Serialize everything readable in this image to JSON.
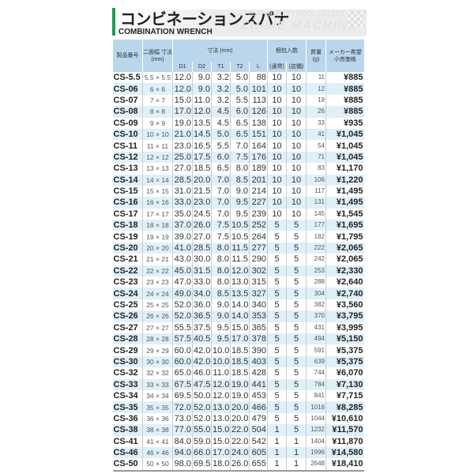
{
  "header": {
    "title": "コンビネーションスパナ",
    "subtitle": "COMBINATION WRENCH",
    "watermark_line1": "HIGH QUALITY TOOL SELECT SHOP",
    "watermark_line2": "EHIME MACHINE"
  },
  "table": {
    "headers": {
      "model": "製品番号",
      "width_across": "二面幅 寸法 (mm)",
      "dimensions": "寸法 (mm)",
      "d1": "D1",
      "d2": "D2",
      "t1": "T1",
      "t2": "T2",
      "l": "L",
      "pack_qty": "梱包入数",
      "pack_normal": "(通常)",
      "pack_store": "(店舗)",
      "weight": "質量 (g)",
      "price": "メーカー希望 小売価格"
    },
    "rows": [
      [
        "CS-5.5",
        "5.5 × 5.5",
        "12.0",
        "9.0",
        "3.2",
        "5.0",
        "88",
        "10",
        "10",
        "11",
        "¥885"
      ],
      [
        "CS-06",
        "6 ×  6",
        "12.0",
        "9.0",
        "3.2",
        "5.0",
        "101",
        "10",
        "10",
        "12",
        "¥885"
      ],
      [
        "CS-07",
        "7 ×  7",
        "15.0",
        "11.0",
        "3.2",
        "5.5",
        "113",
        "10",
        "10",
        "19",
        "¥885"
      ],
      [
        "CS-08",
        "8 ×  8",
        "17.0",
        "12.0",
        "4.5",
        "6.0",
        "126",
        "10",
        "10",
        "26",
        "¥885"
      ],
      [
        "CS-09",
        "9 ×  9",
        "19.0",
        "13.5",
        "4.5",
        "6.5",
        "138",
        "10",
        "10",
        "33",
        "¥935"
      ],
      [
        "CS-10",
        "10 × 10",
        "21.0",
        "14.5",
        "5.0",
        "6.5",
        "151",
        "10",
        "10",
        "41",
        "¥1,045"
      ],
      [
        "CS-11",
        "11 × 11",
        "23.0",
        "16.5",
        "5.5",
        "7.0",
        "164",
        "10",
        "10",
        "54",
        "¥1,045"
      ],
      [
        "CS-12",
        "12 × 12",
        "25.0",
        "17.5",
        "6.0",
        "7.5",
        "176",
        "10",
        "10",
        "71",
        "¥1,045"
      ],
      [
        "CS-13",
        "13 × 13",
        "27.0",
        "18.5",
        "6.5",
        "8.0",
        "189",
        "10",
        "10",
        "83",
        "¥1,170"
      ],
      [
        "CS-14",
        "14 × 14",
        "28.5",
        "20.0",
        "7.0",
        "8.5",
        "201",
        "10",
        "10",
        "106",
        "¥1,220"
      ],
      [
        "CS-15",
        "15 × 15",
        "31.0",
        "21.5",
        "7.0",
        "9.0",
        "214",
        "10",
        "10",
        "117",
        "¥1,495"
      ],
      [
        "CS-16",
        "16 × 16",
        "33.0",
        "23.0",
        "7.0",
        "9.5",
        "227",
        "10",
        "10",
        "131",
        "¥1,495"
      ],
      [
        "CS-17",
        "17 × 17",
        "35.0",
        "24.5",
        "7.0",
        "9.5",
        "239",
        "10",
        "10",
        "145",
        "¥1,545"
      ],
      [
        "CS-18",
        "18 × 18",
        "37.0",
        "26.0",
        "7.5",
        "10.5",
        "252",
        "5",
        "5",
        "177",
        "¥1,695"
      ],
      [
        "CS-19",
        "19 × 19",
        "39.0",
        "27.0",
        "7.5",
        "10.5",
        "264",
        "5",
        "5",
        "182",
        "¥1,795"
      ],
      [
        "CS-20",
        "20 × 20",
        "41.0",
        "28.5",
        "8.0",
        "11.5",
        "277",
        "5",
        "5",
        "222",
        "¥2,065"
      ],
      [
        "CS-21",
        "21 × 21",
        "43.0",
        "30.0",
        "8.0",
        "11.5",
        "290",
        "5",
        "5",
        "242",
        "¥2,065"
      ],
      [
        "CS-22",
        "22 × 22",
        "45.0",
        "31.5",
        "8.0",
        "12.0",
        "302",
        "5",
        "5",
        "253",
        "¥2,330"
      ],
      [
        "CS-23",
        "23 × 23",
        "47.0",
        "33.0",
        "8.0",
        "13.0",
        "315",
        "5",
        "5",
        "288",
        "¥2,640"
      ],
      [
        "CS-24",
        "24 × 24",
        "49.0",
        "34.0",
        "8.5",
        "13.5",
        "327",
        "5",
        "5",
        "304",
        "¥2,740"
      ],
      [
        "CS-25",
        "25 × 25",
        "52.0",
        "36.0",
        "9.0",
        "14.0",
        "340",
        "5",
        "5",
        "382",
        "¥3,560"
      ],
      [
        "CS-26",
        "26 × 26",
        "52.0",
        "36.5",
        "9.0",
        "14.0",
        "353",
        "5",
        "5",
        "370",
        "¥3,795"
      ],
      [
        "CS-27",
        "27 × 27",
        "55.5",
        "37.5",
        "9.5",
        "15.0",
        "365",
        "5",
        "5",
        "431",
        "¥3,995"
      ],
      [
        "CS-28",
        "28 × 28",
        "57.5",
        "40.5",
        "9.5",
        "17.0",
        "378",
        "5",
        "5",
        "494",
        "¥5,150"
      ],
      [
        "CS-29",
        "29 × 29",
        "60.0",
        "42.0",
        "10.0",
        "18.5",
        "390",
        "5",
        "5",
        "591",
        "¥5,375"
      ],
      [
        "CS-30",
        "30 × 30",
        "60.0",
        "42.0",
        "10.0",
        "18.5",
        "403",
        "5",
        "5",
        "639",
        "¥5,375"
      ],
      [
        "CS-32",
        "32 × 32",
        "65.0",
        "46.0",
        "11.0",
        "18.5",
        "428",
        "5",
        "5",
        "744",
        "¥6,070"
      ],
      [
        "CS-33",
        "33 × 33",
        "67.5",
        "47.5",
        "12.0",
        "19.0",
        "441",
        "5",
        "5",
        "784",
        "¥7,130"
      ],
      [
        "CS-34",
        "34 × 34",
        "69.5",
        "50.0",
        "12.0",
        "19.0",
        "453",
        "5",
        "5",
        "841",
        "¥7,715"
      ],
      [
        "CS-35",
        "35 × 35",
        "72.0",
        "52.0",
        "13.0",
        "20.0",
        "466",
        "5",
        "5",
        "1016",
        "¥8,285"
      ],
      [
        "CS-36",
        "36 × 36",
        "73.0",
        "52.0",
        "13.0",
        "20.0",
        "479",
        "5",
        "5",
        "1044",
        "¥10,610"
      ],
      [
        "CS-38",
        "38 × 38",
        "77.0",
        "55.0",
        "15.0",
        "22.0",
        "504",
        "1",
        "5",
        "1232",
        "¥11,570"
      ],
      [
        "CS-41",
        "41 × 41",
        "84.0",
        "59.0",
        "15.0",
        "22.0",
        "542",
        "1",
        "1",
        "1404",
        "¥11,870"
      ],
      [
        "CS-46",
        "46 × 46",
        "94.0",
        "66.0",
        "17.0",
        "24.0",
        "605",
        "1",
        "1",
        "1996",
        "¥14,580"
      ],
      [
        "CS-50",
        "50 × 50",
        "98.0",
        "69.5",
        "18.0",
        "26.0",
        "655",
        "1",
        "1",
        "2648",
        "¥18,410"
      ]
    ]
  },
  "colors": {
    "accent": "#1e9a55",
    "header_bg": "#b9d6ec",
    "row_alt": "#dff0fa"
  }
}
